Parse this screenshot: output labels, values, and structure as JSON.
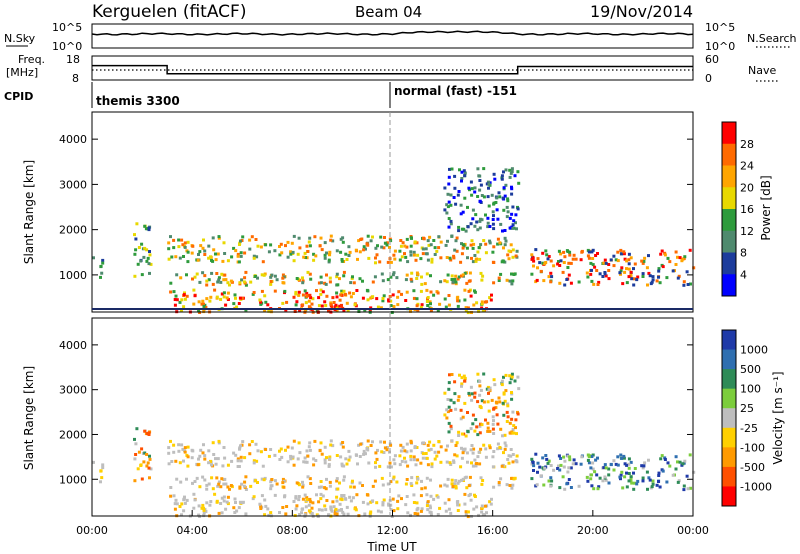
{
  "header": {
    "station": "Kerguelen (fitACF)",
    "beam": "Beam 04",
    "date": "19/Nov/2014"
  },
  "top_panels": {
    "nsky_label": "N.Sky",
    "nsearch_label": "N.Search",
    "noise_ticks": [
      "10^5",
      "10^0"
    ],
    "noise_ticks_right": [
      "10^5",
      "10^0"
    ],
    "freq_label_1": "Freq.",
    "freq_label_2": "[MHz]",
    "freq_ticks": [
      "18",
      "8"
    ],
    "nave_label": "Nave",
    "nave_ticks": [
      "60",
      "0"
    ],
    "cpid_label": "CPID",
    "cpid_1": "themis 3300",
    "cpid_2": "normal (fast) -151",
    "freq_steps": [
      {
        "t0": 0,
        "t1": 3,
        "freq_mhz": 14.0
      },
      {
        "t0": 3,
        "t1": 17,
        "freq_mhz": 10.6
      },
      {
        "t0": 17,
        "t1": 24,
        "freq_mhz": 13.6
      }
    ]
  },
  "power_panel": {
    "ylabel": "Slant Range [km]",
    "cbar_label": "Power [dB]",
    "cbar_ticks": [
      "28",
      "24",
      "20",
      "16",
      "12",
      "8",
      "4"
    ],
    "cbar_colors": [
      "#ff0000",
      "#ff6a00",
      "#ffa500",
      "#e8d800",
      "#2e9b3c",
      "#4f8a6e",
      "#1c3c9c",
      "#0000ff"
    ]
  },
  "velocity_panel": {
    "ylabel": "Slant Range [km]",
    "cbar_label": "Velocity [m s⁻¹]",
    "cbar_ticks": [
      "1000",
      "500",
      "100",
      "25",
      "-25",
      "-100",
      "-500",
      "-1000"
    ],
    "cbar_colors": [
      "#1f3aa8",
      "#2f6fb0",
      "#2e8b57",
      "#7ccd3c",
      "#bebebe",
      "#ffd000",
      "#ff9a00",
      "#ff5000",
      "#ff0000"
    ]
  },
  "axes": {
    "range_ticks": [
      "4000",
      "3000",
      "2000",
      "1000"
    ],
    "time_ticks": [
      "00:00",
      "04:00",
      "08:00",
      "12:00",
      "16:00",
      "20:00",
      "00:00"
    ],
    "xlabel": "Time UT",
    "xlim_hours": [
      0,
      24
    ],
    "ylim_km": [
      180,
      4600
    ]
  },
  "chart_data": {
    "type": "heatmap",
    "title": "Kerguelen (fitACF)  Beam 04  19/Nov/2014",
    "xlabel": "Time UT",
    "ylabel": "Slant Range [km]",
    "x_range_hours": [
      0,
      24
    ],
    "y_range_km": [
      180,
      4600
    ],
    "marker_time_hours": 12,
    "power_colorbar_db": [
      4,
      8,
      12,
      16,
      20,
      24,
      28
    ],
    "velocity_colorbar_ms": [
      -1000,
      -500,
      -100,
      -25,
      25,
      100,
      500,
      1000
    ],
    "scatter_regions": [
      {
        "t0": 0.0,
        "t1": 0.4,
        "r0": 950,
        "r1": 1450,
        "power": "blue-green",
        "velocity": "grey"
      },
      {
        "t0": 1.6,
        "t1": 2.3,
        "r0": 1000,
        "r1": 2200,
        "power": "green",
        "velocity": "mixed"
      },
      {
        "t0": 3.0,
        "t1": 17.0,
        "r0": 1300,
        "r1": 1900,
        "power": "green-orange",
        "velocity": "grey"
      },
      {
        "t0": 3.0,
        "t1": 17.0,
        "r0": 800,
        "r1": 1100,
        "power": "green-orange",
        "velocity": "grey"
      },
      {
        "t0": 3.0,
        "t1": 16.0,
        "r0": 200,
        "r1": 700,
        "power": "orange-red",
        "velocity": "grey"
      },
      {
        "t0": 8.0,
        "t1": 10.0,
        "r0": 200,
        "r1": 600,
        "power": "red",
        "velocity": "grey"
      },
      {
        "t0": 14.0,
        "t1": 17.0,
        "r0": 2000,
        "r1": 3400,
        "power": "blue-green",
        "velocity": "mixed"
      },
      {
        "t0": 17.5,
        "t1": 24.0,
        "r0": 800,
        "r1": 1600,
        "power": "red-orange",
        "velocity": "green-blue"
      }
    ]
  }
}
